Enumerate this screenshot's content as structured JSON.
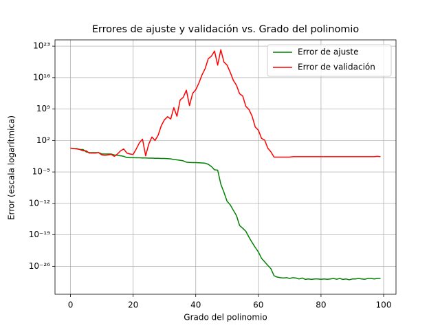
{
  "chart_data": {
    "type": "line",
    "title": "Errores de ajuste y validación vs. Grado del polinomio",
    "x_label": "Grado del polinomio",
    "y_label": "Error (escala logarítmica)",
    "log_y": true,
    "grid": true,
    "legend": "upper right",
    "xlim": [
      -4.95,
      103.95
    ],
    "ylim": [
      6e-33,
      2.5e+24
    ],
    "xticks": [
      0,
      20,
      40,
      60,
      80,
      100
    ],
    "yticks": [
      {
        "value": 1e-26,
        "label": "10⁻²⁶"
      },
      {
        "value": 1e-19,
        "label": "10⁻¹⁹"
      },
      {
        "value": 1e-12,
        "label": "10⁻¹²"
      },
      {
        "value": 1e-05,
        "label": "10⁻⁵"
      },
      {
        "value": 100,
        "label": "10²"
      },
      {
        "value": 1000000000.0,
        "label": "10⁹"
      },
      {
        "value": 1e+16,
        "label": "10¹⁶"
      },
      {
        "value": 1e+23,
        "label": "10²³"
      }
    ],
    "x": [
      0,
      1,
      2,
      3,
      4,
      5,
      6,
      7,
      8,
      9,
      10,
      11,
      12,
      13,
      14,
      15,
      16,
      17,
      18,
      19,
      20,
      21,
      22,
      23,
      24,
      25,
      26,
      27,
      28,
      29,
      30,
      31,
      32,
      33,
      34,
      35,
      36,
      37,
      38,
      39,
      40,
      41,
      42,
      43,
      44,
      45,
      46,
      47,
      48,
      49,
      50,
      51,
      52,
      53,
      54,
      55,
      56,
      57,
      58,
      59,
      60,
      61,
      62,
      63,
      64,
      65,
      66,
      67,
      68,
      69,
      70,
      71,
      72,
      73,
      74,
      75,
      76,
      77,
      78,
      79,
      80,
      81,
      82,
      83,
      84,
      85,
      86,
      87,
      88,
      89,
      90,
      91,
      92,
      93,
      94,
      95,
      96,
      97,
      98,
      99
    ],
    "series": [
      {
        "name": "Error de ajuste",
        "color": "#008000",
        "values": [
          2,
          1.6,
          1.6,
          1,
          1,
          0.3,
          0.2,
          0.2,
          0.2,
          0.2,
          0.1,
          0.1,
          0.1,
          0.1,
          0.06,
          0.05,
          0.04,
          0.03,
          0.016,
          0.015,
          0.015,
          0.014,
          0.014,
          0.013,
          0.013,
          0.012,
          0.012,
          0.011,
          0.011,
          0.01,
          0.01,
          0.009,
          0.008,
          0.006,
          0.005,
          0.004,
          0.003,
          0.0015,
          0.0013,
          0.0012,
          0.0012,
          0.0011,
          0.001,
          0.0009,
          0.0005,
          0.00016,
          3e-05,
          2.5e-05,
          2e-08,
          3e-10,
          3e-12,
          5e-13,
          3e-14,
          2e-15,
          1.2e-17,
          3e-18,
          6e-19,
          3e-20,
          2e-21,
          1.6e-22,
          1.6e-23,
          6e-25,
          1e-25,
          1.6e-26,
          3e-27,
          8e-29,
          4e-29,
          3e-29,
          2.5e-29,
          3e-29,
          2e-29,
          3e-29,
          2.5e-29,
          1.5e-29,
          2.5e-29,
          1.2e-29,
          1.5e-29,
          1.2e-29,
          1.5e-29,
          1.5e-29,
          1.3e-29,
          1.5e-29,
          1.3e-29,
          1.5e-29,
          2e-29,
          1.3e-29,
          2e-29,
          1.2e-29,
          1.5e-29,
          1e-29,
          1.5e-29,
          1.5e-29,
          2e-29,
          1.5e-29,
          1.3e-29,
          2e-29,
          2e-29,
          1.5e-29,
          2e-29,
          2e-29
        ]
      },
      {
        "name": "Error de validación",
        "color": "#ff0000",
        "values": [
          2,
          1.6,
          1.3,
          1,
          0.5,
          0.5,
          0.16,
          0.16,
          0.16,
          0.2,
          0.06,
          0.05,
          0.06,
          0.08,
          0.03,
          0.1,
          0.5,
          1.3,
          0.16,
          0.1,
          0.08,
          1.3,
          30,
          200,
          0.04,
          16,
          600,
          100,
          1600,
          200000.0,
          4000000.0,
          20000000.0,
          6000000.0,
          2000000000.0,
          25000000.0,
          100000000000.0,
          400000000000.0,
          16000000000000.0,
          6000000000.0,
          3000000000000.0,
          20000000000000.0,
          600000000000000.0,
          4e+16,
          1e+18,
          1.6e+20,
          6e+20,
          8e+21,
          6e+18,
          1.6e+22,
          3e+19,
          6e+18,
          1.6e+17,
          2500000000000000.0,
          200000000000000.0,
          2500000000000.0,
          800000000000.0,
          4000000000.0,
          800000000.0,
          25000000.0,
          100000.0,
          20000.0,
          300,
          130,
          2,
          0.3,
          0.02,
          0.02,
          0.02,
          0.02,
          0.02,
          0.02,
          0.025,
          0.025,
          0.025,
          0.025,
          0.025,
          0.025,
          0.025,
          0.025,
          0.025,
          0.025,
          0.025,
          0.025,
          0.025,
          0.025,
          0.025,
          0.025,
          0.025,
          0.025,
          0.025,
          0.025,
          0.025,
          0.025,
          0.025,
          0.025,
          0.025,
          0.025,
          0.025,
          0.03,
          0.025
        ]
      }
    ]
  }
}
